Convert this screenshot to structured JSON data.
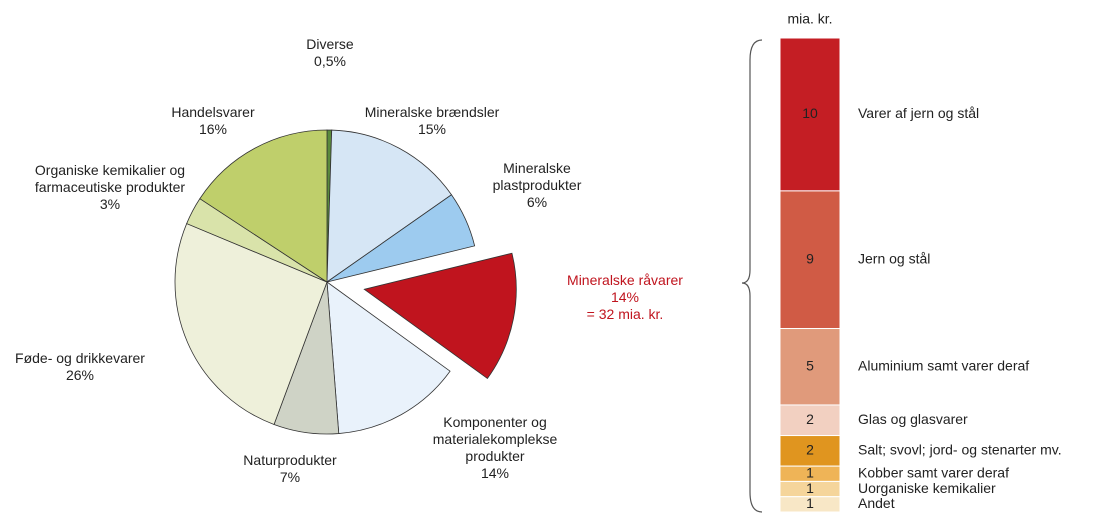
{
  "chart_data": [
    {
      "type": "pie",
      "categories": [
        "Diverse",
        "Mineralske brændsler",
        "Mineralske plastprodukter",
        "Mineralske råvarer",
        "Komponenter og materialekomplekse produkter",
        "Naturprodukter",
        "Føde- og drikkevarer",
        "Organiske kemikalier og farmaceutiske produkter",
        "Handelsvarer"
      ],
      "values": [
        0.5,
        15,
        6,
        14,
        14,
        7,
        26,
        3,
        16
      ],
      "value_labels": [
        "0,5%",
        "15%",
        "6%",
        "14%",
        "14%",
        "7%",
        "26%",
        "3%",
        "16%"
      ],
      "colors": [
        "#5a8a3c",
        "#d6e6f5",
        "#9dcbef",
        "#c0141e",
        "#e9f2fb",
        "#cfd3c6",
        "#eef0da",
        "#d9e3aa",
        "#bfcf6b"
      ],
      "exploded": 3,
      "annotation": "= 32 mia. kr."
    },
    {
      "type": "bar",
      "stacked": true,
      "ylabel": "mia. kr.",
      "categories": [
        "Varer af jern og stål",
        "Jern og stål",
        "Aluminium samt varer deraf",
        "Glas og glasvarer",
        "Salt; svovl; jord- og stenarter mv.",
        "Kobber samt varer deraf",
        "Uorganiske kemikalier",
        "Andet"
      ],
      "values": [
        10,
        9,
        5,
        2,
        2,
        1,
        1,
        1
      ],
      "colors": [
        "#c41e24",
        "#d05b45",
        "#e09a7b",
        "#f2d0c1",
        "#e0951f",
        "#efb457",
        "#f5d59b",
        "#f8e7c6"
      ]
    }
  ]
}
